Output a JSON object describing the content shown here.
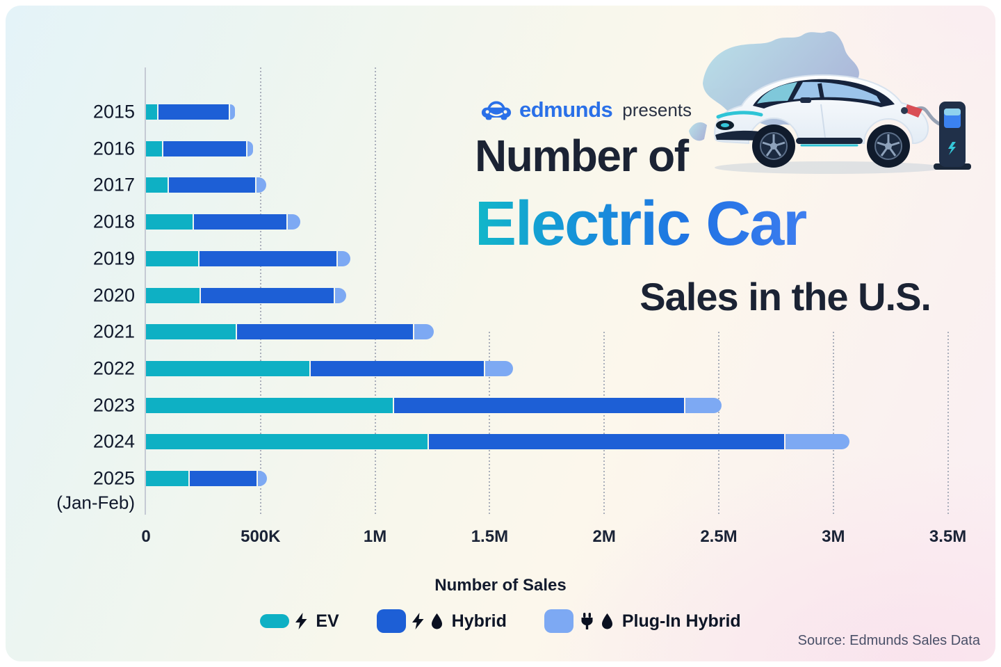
{
  "header": {
    "brand": "edmunds",
    "presents": "presents",
    "title_line_1": "Number of",
    "title_line_2": "Electric Car",
    "title_line_3": "Sales in the U.S."
  },
  "chart_data": {
    "type": "bar",
    "orientation": "horizontal",
    "stacked": true,
    "title": "Number of Electric Car Sales in the U.S.",
    "xlabel": "Number of Sales",
    "xlim": [
      0,
      3500000
    ],
    "grid": "vertical-dotted",
    "legend_position": "bottom",
    "categories": [
      "2015",
      "2016",
      "2017",
      "2018",
      "2019",
      "2020",
      "2021",
      "2022",
      "2023",
      "2024",
      "2025"
    ],
    "category_sublabels": [
      "",
      "",
      "",
      "",
      "",
      "",
      "",
      "",
      "",
      "",
      "(Jan-Feb)"
    ],
    "x_ticks": [
      {
        "value": 0,
        "label": "0"
      },
      {
        "value": 500000,
        "label": "500K"
      },
      {
        "value": 1000000,
        "label": "1M"
      },
      {
        "value": 1500000,
        "label": "1.5M"
      },
      {
        "value": 2000000,
        "label": "2M"
      },
      {
        "value": 2500000,
        "label": "2.5M"
      },
      {
        "value": 3000000,
        "label": "3M"
      },
      {
        "value": 3500000,
        "label": "3.5M"
      }
    ],
    "series": [
      {
        "name": "EV",
        "color": "#0eb0c4",
        "values": [
          50000,
          70000,
          95000,
          202000,
          227000,
          233000,
          392000,
          713000,
          1078000,
          1229000,
          186000
        ]
      },
      {
        "name": "Hybrid",
        "color": "#1d5fd6",
        "values": [
          305000,
          360000,
          375000,
          404000,
          598000,
          579000,
          766000,
          754000,
          1264000,
          1549000,
          289000
        ]
      },
      {
        "name": "Plug-In Hybrid",
        "color": "#7da9f3",
        "values": [
          22000,
          25000,
          43000,
          55000,
          55000,
          51000,
          85000,
          124000,
          159000,
          279000,
          40000
        ]
      }
    ]
  },
  "legend": {
    "items": [
      {
        "label": "EV",
        "color": "#0eb0c4",
        "swatch": "pill",
        "icons": [
          "bolt-icon"
        ]
      },
      {
        "label": "Hybrid",
        "color": "#1d5fd6",
        "swatch": "square",
        "icons": [
          "bolt-icon",
          "droplet-icon"
        ]
      },
      {
        "label": "Plug-In Hybrid",
        "color": "#7da9f3",
        "swatch": "square",
        "icons": [
          "plug-icon",
          "droplet-icon"
        ]
      }
    ]
  },
  "footer": {
    "source": "Source: Edmunds Sales Data"
  }
}
